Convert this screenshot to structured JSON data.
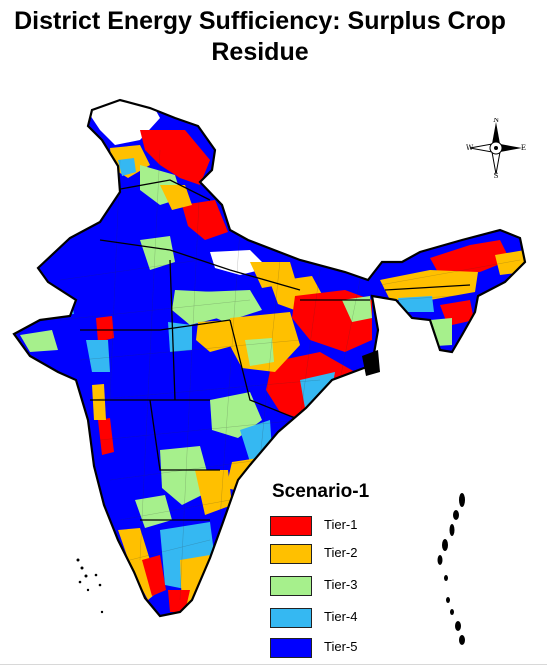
{
  "title": {
    "line1": "District Energy Sufficiency: Surplus Crop",
    "line2": "Residue"
  },
  "compass": {
    "n": "N",
    "s": "S",
    "e": "E",
    "w": "W"
  },
  "legend": {
    "title": "Scenario-1",
    "items": [
      {
        "label": "Tier-1",
        "color": "#ff0000"
      },
      {
        "label": "Tier-2",
        "color": "#ffc000"
      },
      {
        "label": "Tier-3",
        "color": "#a6f08c"
      },
      {
        "label": "Tier-4",
        "color": "#35b8f2"
      },
      {
        "label": "Tier-5",
        "color": "#0000ff"
      }
    ]
  },
  "map": {
    "region": "India",
    "units": "districts",
    "no_data_color": "#ffffff",
    "boundary_color": "#000000"
  }
}
